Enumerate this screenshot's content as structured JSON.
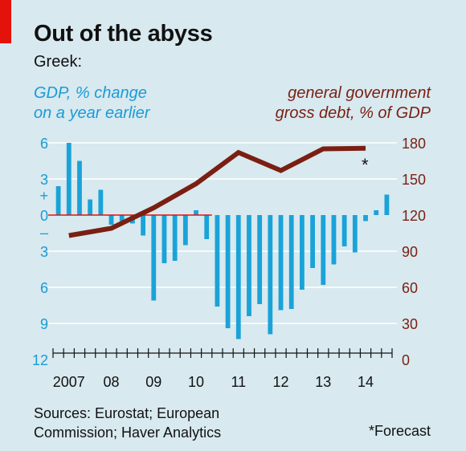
{
  "title": "Out of the abyss",
  "subtitle": "Greek:",
  "left_axis_label_line1": "GDP, % change",
  "left_axis_label_line2": "on a year earlier",
  "right_axis_label_line1": "general government",
  "right_axis_label_line2": "gross debt, % of GDP",
  "source_line1": "Sources: Eurostat; European",
  "source_line2": "Commission; Haver Analytics",
  "footnote": "*Forecast",
  "chart_data": {
    "type": "bar+line",
    "left_axis": {
      "ticks": [
        6,
        3,
        0,
        -3,
        -6,
        -9,
        -12
      ],
      "tick_labels": [
        "6",
        "3",
        "0",
        "3",
        "6",
        "9",
        "12"
      ],
      "ylim": [
        -12,
        6
      ],
      "sign_labels": {
        "plus": "+",
        "minus": "–"
      }
    },
    "right_axis": {
      "ticks": [
        180,
        150,
        120,
        90,
        60,
        30,
        0
      ],
      "ylim": [
        0,
        180
      ]
    },
    "x_axis": {
      "labels": [
        {
          "text": "2007",
          "quarter_index": 1.5
        },
        {
          "text": "08",
          "quarter_index": 5.5
        },
        {
          "text": "09",
          "quarter_index": 9.5
        },
        {
          "text": "10",
          "quarter_index": 13.5
        },
        {
          "text": "11",
          "quarter_index": 17.5
        },
        {
          "text": "12",
          "quarter_index": 21.5
        },
        {
          "text": "13",
          "quarter_index": 25.5
        },
        {
          "text": "14",
          "quarter_index": 29.5
        }
      ],
      "start_quarter": "2006-Q4",
      "quarters": 32
    },
    "series": [
      {
        "name": "GDP, % change on a year earlier",
        "type": "bar",
        "axis": "left",
        "color": "#1aa3d8",
        "values": [
          2.4,
          6.0,
          4.5,
          1.3,
          2.1,
          -0.8,
          -0.5,
          -0.7,
          -1.7,
          -7.1,
          -4.0,
          -3.8,
          -2.5,
          0.4,
          -2.0,
          -7.6,
          -9.4,
          -10.3,
          -8.4,
          -7.4,
          -9.9,
          -7.9,
          -7.8,
          -6.2,
          -4.4,
          -5.8,
          -4.1,
          -2.6,
          -3.1,
          -0.5,
          0.4,
          1.7
        ]
      },
      {
        "name": "general government gross debt, % of GDP",
        "type": "line",
        "axis": "right",
        "color": "#7a1f12",
        "points": [
          [
            1.5,
            103
          ],
          [
            5.5,
            109
          ],
          [
            9.5,
            126
          ],
          [
            13.5,
            146
          ],
          [
            17.5,
            172
          ],
          [
            21.5,
            157
          ],
          [
            25.5,
            175
          ],
          [
            29.5,
            175.5
          ]
        ],
        "forecast_marker_index": 7
      }
    ],
    "gridlines": true,
    "zero_line_color": "#e3120b"
  }
}
